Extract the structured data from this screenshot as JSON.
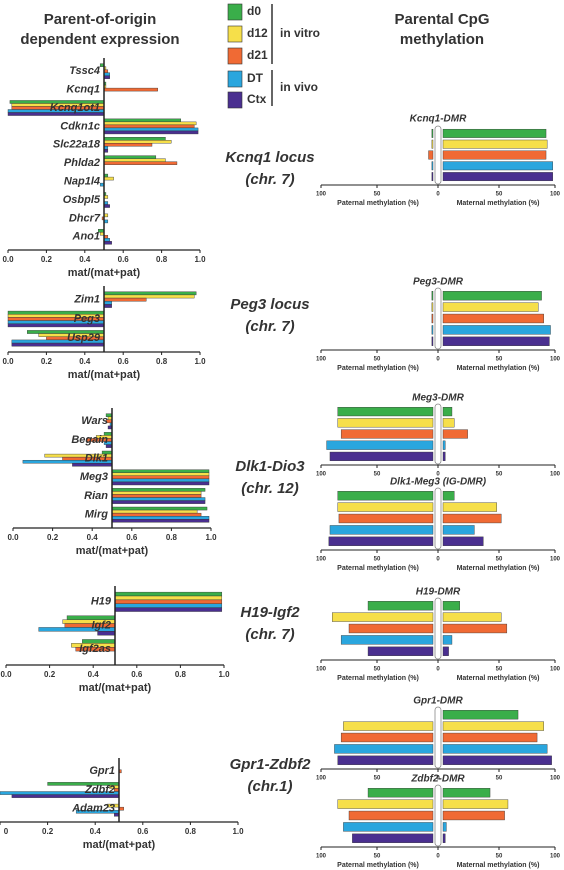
{
  "header": {
    "left_title": [
      "Parent-of-origin",
      "dependent expression"
    ],
    "right_title": [
      "Parental CpG",
      "methylation"
    ]
  },
  "legend": {
    "series": [
      {
        "name": "d0",
        "color": "#3aae4a"
      },
      {
        "name": "d12",
        "color": "#f6df4a"
      },
      {
        "name": "d21",
        "color": "#f06a34"
      },
      {
        "name": "DT",
        "color": "#2aa6de"
      },
      {
        "name": "Ctx",
        "color": "#4a2f90"
      }
    ],
    "groups": [
      "in vitro",
      "in vivo"
    ]
  },
  "loci": [
    {
      "name": "Kcnq1 locus",
      "chr": "(chr. 7)"
    },
    {
      "name": "Peg3 locus",
      "chr": "(chr. 7)"
    },
    {
      "name": "Dlk1-Dio3",
      "chr": "(chr. 12)"
    },
    {
      "name": "H19-Igf2",
      "chr": "(chr. 7)"
    },
    {
      "name": "Gpr1-Zdbf2",
      "chr": "(chr.1)"
    }
  ],
  "chart_data": [
    {
      "type": "bar",
      "orientation": "horizontal",
      "baseline": 0.5,
      "xlabel": "mat/(mat+pat)",
      "categories": [
        "Tssc4",
        "Kcnq1",
        "Kcnq1ot1",
        "Cdkn1c",
        "Slc22a18",
        "Phlda2",
        "Nap1l4",
        "Osbpl5",
        "Dhcr7",
        "Ano1"
      ],
      "series": [
        {
          "values": [
            0.48,
            0.51,
            0.01,
            0.9,
            0.82,
            0.77,
            0.52,
            0.51,
            0.5,
            0.47
          ]
        },
        {
          "values": [
            0.51,
            0.51,
            0.02,
            0.98,
            0.85,
            0.82,
            0.55,
            0.52,
            0.52,
            0.48
          ]
        },
        {
          "values": [
            0.52,
            0.78,
            0.02,
            0.97,
            0.75,
            0.88,
            0.5,
            0.5,
            0.49,
            0.52
          ]
        },
        {
          "values": [
            0.53,
            0.5,
            0.0,
            0.99,
            0.52,
            0.5,
            0.48,
            0.52,
            0.52,
            0.53
          ]
        },
        {
          "values": [
            0.53,
            0.5,
            0.0,
            0.99,
            0.52,
            0.5,
            0.5,
            0.53,
            0.5,
            0.54
          ]
        }
      ],
      "xlim": [
        0,
        1
      ],
      "xticks": [
        {
          "value": 0,
          "label": "0.0"
        },
        0.2,
        0.4,
        0.6,
        0.8,
        {
          "value": 1,
          "label": "1.0"
        }
      ]
    },
    {
      "type": "bar",
      "orientation": "horizontal",
      "baseline": 0.5,
      "xlabel": "mat/(mat+pat)",
      "categories": [
        "Zim1",
        "Peg3",
        "Usp29"
      ],
      "series": [
        {
          "values": [
            0.98,
            0.0,
            0.1
          ]
        },
        {
          "values": [
            0.97,
            0.0,
            0.16
          ]
        },
        {
          "values": [
            0.72,
            0.0,
            0.2
          ]
        },
        {
          "values": [
            0.54,
            0.0,
            0.02
          ]
        },
        {
          "values": [
            0.54,
            0.0,
            0.02
          ]
        }
      ],
      "xlim": [
        0,
        1
      ],
      "xticks": [
        {
          "value": 0,
          "label": "0.0"
        },
        0.2,
        0.4,
        0.6,
        0.8,
        {
          "value": 1,
          "label": "1.0"
        }
      ]
    },
    {
      "type": "bar",
      "orientation": "horizontal",
      "baseline": 0.5,
      "xlabel": "mat/(mat+pat)",
      "categories": [
        "Wars",
        "Begain",
        "Dlk1",
        "Meg3",
        "Rian",
        "Mirg"
      ],
      "series": [
        {
          "values": [
            0.47,
            0.46,
            0.45,
            0.99,
            0.97,
            0.98
          ]
        },
        {
          "values": [
            0.48,
            0.42,
            0.16,
            0.99,
            0.95,
            0.93
          ]
        },
        {
          "values": [
            0.47,
            0.37,
            0.25,
            0.99,
            0.95,
            0.95
          ]
        },
        {
          "values": [
            0.49,
            0.46,
            0.05,
            0.99,
            0.97,
            0.99
          ]
        },
        {
          "values": [
            0.48,
            0.47,
            0.3,
            0.99,
            0.97,
            0.99
          ]
        }
      ],
      "xlim": [
        0,
        1
      ],
      "xticks": [
        {
          "value": 0,
          "label": "0.0"
        },
        0.2,
        0.4,
        0.6,
        0.8,
        {
          "value": 1,
          "label": "1.0"
        }
      ]
    },
    {
      "type": "bar",
      "orientation": "horizontal",
      "baseline": 0.5,
      "xlabel": "mat/(mat+pat)",
      "categories": [
        "H19",
        "Igf2",
        "Igf2as"
      ],
      "series": [
        {
          "values": [
            0.99,
            0.28,
            0.35
          ]
        },
        {
          "values": [
            0.99,
            0.26,
            0.3
          ]
        },
        {
          "values": [
            0.99,
            0.27,
            0.32
          ]
        },
        {
          "values": [
            0.99,
            0.15,
            0.5
          ]
        },
        {
          "values": [
            0.99,
            0.42,
            0.5
          ]
        }
      ],
      "xlim": [
        0,
        1
      ],
      "xticks": [
        {
          "value": 0,
          "label": "0.0"
        },
        0.2,
        0.4,
        0.6,
        0.8,
        {
          "value": 1,
          "label": "1.0"
        }
      ]
    },
    {
      "type": "bar",
      "orientation": "horizontal",
      "baseline": 0.5,
      "xlabel": "mat/(mat+pat)",
      "categories": [
        "Gpr1",
        "Zdbf2",
        "Adam23"
      ],
      "series": [
        {
          "values": [
            0.5,
            0.2,
            0.5
          ]
        },
        {
          "values": [
            0.5,
            0.46,
            0.45
          ]
        },
        {
          "values": [
            0.51,
            0.48,
            0.52
          ]
        },
        {
          "values": [
            0.5,
            0.0,
            0.32
          ]
        },
        {
          "values": [
            0.5,
            0.05,
            0.48
          ]
        }
      ],
      "xlim": [
        0,
        1
      ],
      "xticks": [
        0,
        0.2,
        0.4,
        0.6,
        0.8,
        {
          "value": 1,
          "label": "1.0"
        }
      ]
    },
    {
      "type": "diverging-bar",
      "title": "Kcnq1-DMR",
      "paternal": [
        1,
        1,
        4,
        1,
        1
      ],
      "maternal": [
        92,
        93,
        92,
        98,
        98
      ],
      "xlim": [
        0,
        100
      ],
      "xticks": [
        0,
        50,
        100
      ],
      "xlabel_paternal": "Paternal methylation (%)",
      "xlabel_maternal": "Maternal methylation (%)"
    },
    {
      "type": "diverging-bar",
      "title": "Peg3-DMR",
      "paternal": [
        1,
        1,
        1,
        1,
        1
      ],
      "maternal": [
        88,
        85,
        90,
        96,
        95
      ],
      "xlim": [
        0,
        100
      ],
      "xticks": [
        0,
        50,
        100
      ],
      "xlabel_paternal": "Paternal methylation (%)",
      "xlabel_maternal": "Maternal methylation (%)"
    },
    {
      "type": "diverging-bar",
      "title": "Meg3-DMR",
      "paternal": [
        85,
        85,
        82,
        95,
        92
      ],
      "maternal": [
        8,
        10,
        22,
        2,
        2
      ],
      "xlim": [
        0,
        100
      ],
      "xticks": [
        0,
        50,
        100
      ]
    },
    {
      "type": "diverging-bar",
      "title": "Dlk1-Meg3 (IG-DMR)",
      "paternal": [
        85,
        85,
        84,
        92,
        93
      ],
      "maternal": [
        10,
        48,
        52,
        28,
        36
      ],
      "xlim": [
        0,
        100
      ],
      "xticks": [
        0,
        50,
        100
      ],
      "xlabel_paternal": "Paternal methylation (%)",
      "xlabel_maternal": "Maternal methylation (%)"
    },
    {
      "type": "diverging-bar",
      "title": "H19-DMR",
      "paternal": [
        58,
        90,
        75,
        82,
        58
      ],
      "maternal": [
        15,
        52,
        57,
        8,
        5
      ],
      "xlim": [
        0,
        100
      ],
      "xticks": [
        0,
        50,
        100
      ],
      "xlabel_paternal": "Paternal methylation (%)",
      "xlabel_maternal": "Maternal methylation (%)"
    },
    {
      "type": "diverging-bar",
      "title": "Gpr1-DMR",
      "paternal": [
        0,
        80,
        82,
        88,
        85
      ],
      "maternal": [
        67,
        90,
        84,
        93,
        97
      ],
      "xlim": [
        0,
        100
      ],
      "xticks": [
        0,
        50,
        100
      ]
    },
    {
      "type": "diverging-bar",
      "title": "Zdbf2-DMR",
      "paternal": [
        58,
        85,
        75,
        80,
        72
      ],
      "maternal": [
        42,
        58,
        55,
        3,
        2
      ],
      "xlim": [
        0,
        100
      ],
      "xticks": [
        0,
        50,
        100
      ],
      "xlabel_paternal": "Paternal methylation (%)",
      "xlabel_maternal": "Maternal methylation (%)"
    }
  ]
}
